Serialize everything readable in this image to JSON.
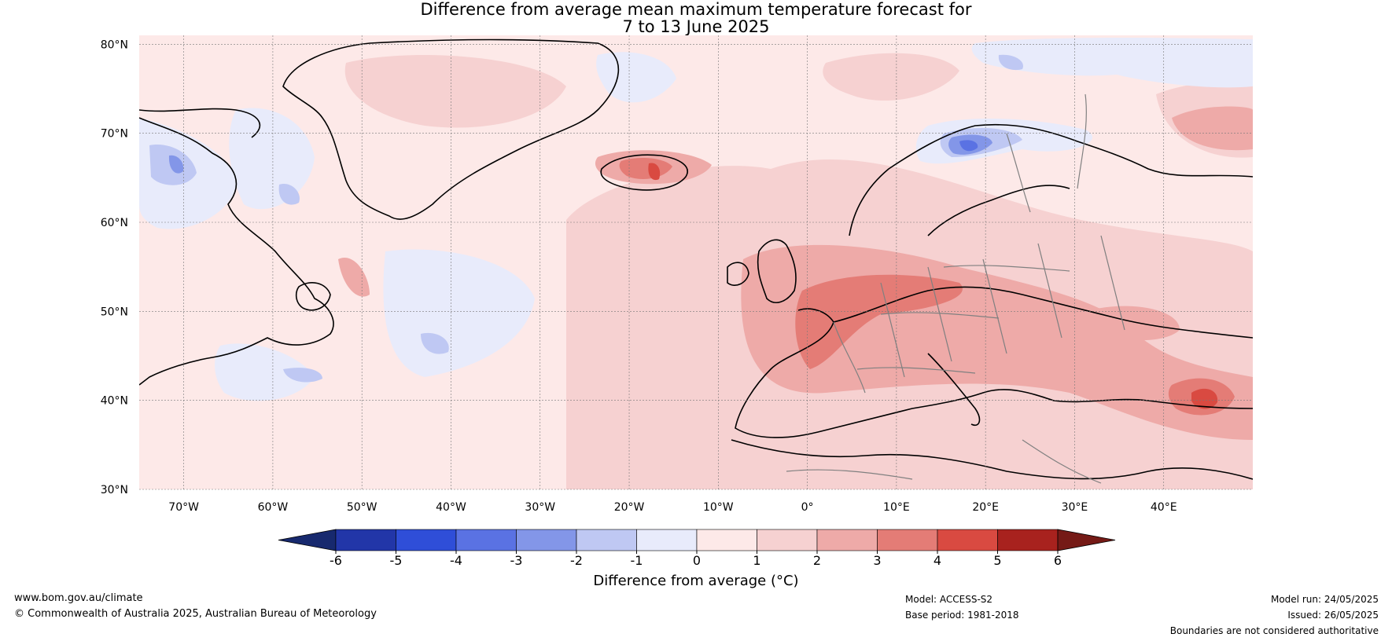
{
  "title": {
    "line1": "Difference from average mean maximum temperature forecast for",
    "line2": "7 to 13 June 2025"
  },
  "map": {
    "lat_labels": [
      "80°N",
      "70°N",
      "60°N",
      "50°N",
      "40°N",
      "30°N"
    ],
    "lon_labels": [
      "70°W",
      "60°W",
      "50°W",
      "40°W",
      "30°W",
      "20°W",
      "10°W",
      "0°",
      "10°E",
      "20°E",
      "30°E",
      "40°E"
    ],
    "lon_range": [
      -75,
      50
    ],
    "lat_range": [
      30,
      81
    ]
  },
  "colorbar": {
    "ticks": [
      "-6",
      "-5",
      "-4",
      "-3",
      "-2",
      "-1",
      "0",
      "1",
      "2",
      "3",
      "4",
      "5",
      "6"
    ],
    "colors": [
      "#2236a8",
      "#2f4ed8",
      "#5a72e3",
      "#8396e8",
      "#bfc8f3",
      "#e8ebfb",
      "#fde9e8",
      "#f6d1d1",
      "#eeaaa8",
      "#e47c76",
      "#d94a41",
      "#a8221e"
    ],
    "low_extend_color": "#17296e",
    "high_extend_color": "#751a16",
    "label": "Difference from average (°C)"
  },
  "footer": {
    "website": "www.bom.gov.au/climate",
    "copyright": "© Commonwealth of Australia 2025, Australian Bureau of Meteorology",
    "model": "Model: ACCESS-S2",
    "base_period": "Base period: 1981-2018",
    "model_run": "Model run: 24/05/2025",
    "issued": "Issued: 26/05/2025",
    "disclaimer": "Boundaries are not considered authoritative"
  }
}
